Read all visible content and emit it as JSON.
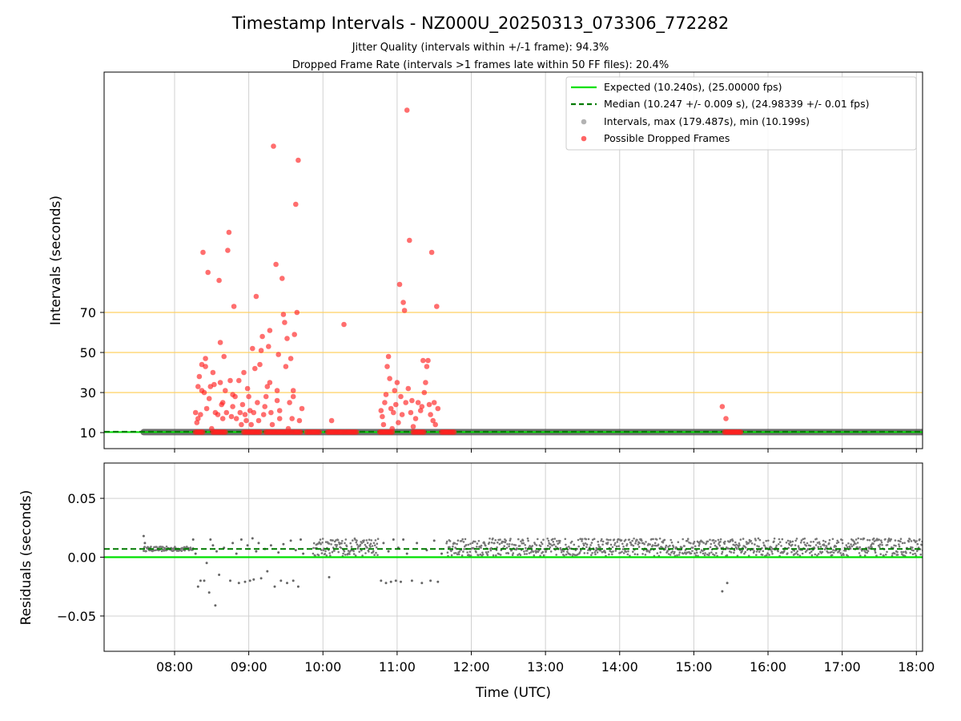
{
  "figure": {
    "title": "Timestamp Intervals - NZ000U_20250313_073306_772282",
    "subtitle_1": "Jitter Quality (intervals within +/-1 frame): 94.3%",
    "subtitle_2": "Dropped Frame Rate (intervals >1 frames late within 50 FF files): 20.4%",
    "xlabel": "Time (UTC)"
  },
  "colors": {
    "expected": "#00e000",
    "median": "#007a00",
    "intervals": "#7f7f7f",
    "dropped": "#ff0000",
    "threshold": "#ffd060",
    "grid": "#d0d0d0"
  },
  "chart_data": [
    {
      "type": "scatter",
      "panel": "top",
      "ylabel": "Intervals (seconds)",
      "xlim": [
        "07:03",
        "18:05"
      ],
      "ylim": [
        2,
        190
      ],
      "x_ticks": [
        "08:00",
        "09:00",
        "10:00",
        "11:00",
        "12:00",
        "13:00",
        "14:00",
        "15:00",
        "16:00",
        "17:00",
        "18:00"
      ],
      "y_ticks": [
        10,
        30,
        50,
        70
      ],
      "threshold_lines": [
        30,
        50,
        70
      ],
      "grid": true,
      "legend_position": "top-right",
      "legend": [
        {
          "key": "expected",
          "label": "Expected (10.240s), (25.00000 fps)",
          "style": "solid-line"
        },
        {
          "key": "median",
          "label": "Median (10.247 +/- 0.009 s), (24.98339 +/- 0.01 fps)",
          "style": "dashed-line"
        },
        {
          "key": "intervals",
          "label": "Intervals, max (179.487s), min (10.199s)",
          "style": "dot"
        },
        {
          "key": "dropped",
          "label": "Possible Dropped Frames",
          "style": "dot"
        }
      ],
      "expected_value": 10.24,
      "median_value": 10.247,
      "interval_band": {
        "x_start": "07:35",
        "x_end": "18:05",
        "value": 10.24
      },
      "dropped_clusters": [
        {
          "x_start": "08:17",
          "x_end": "08:23",
          "y": 10.25
        },
        {
          "x_start": "08:31",
          "x_end": "08:41",
          "y": 10.25
        },
        {
          "x_start": "08:56",
          "x_end": "09:10",
          "y": 10.25
        },
        {
          "x_start": "09:14",
          "x_end": "09:35",
          "y": 10.25
        },
        {
          "x_start": "09:36",
          "x_end": "09:42",
          "y": 10.25
        },
        {
          "x_start": "09:47",
          "x_end": "09:57",
          "y": 10.25
        },
        {
          "x_start": "10:04",
          "x_end": "10:16",
          "y": 10.25
        },
        {
          "x_start": "10:17",
          "x_end": "10:27",
          "y": 10.25
        },
        {
          "x_start": "10:46",
          "x_end": "10:57",
          "y": 10.25
        },
        {
          "x_start": "11:13",
          "x_end": "11:22",
          "y": 10.25
        },
        {
          "x_start": "11:36",
          "x_end": "11:47",
          "y": 10.25
        },
        {
          "x_start": "15:25",
          "x_end": "15:38",
          "y": 10.25
        }
      ],
      "dropped_points": [
        {
          "x": "08:17",
          "y": 20
        },
        {
          "x": "08:18",
          "y": 15
        },
        {
          "x": "08:19",
          "y": 17
        },
        {
          "x": "08:19",
          "y": 33
        },
        {
          "x": "08:20",
          "y": 38
        },
        {
          "x": "08:21",
          "y": 19
        },
        {
          "x": "08:22",
          "y": 44
        },
        {
          "x": "08:22",
          "y": 31
        },
        {
          "x": "08:23",
          "y": 100
        },
        {
          "x": "08:24",
          "y": 30
        },
        {
          "x": "08:25",
          "y": 43
        },
        {
          "x": "08:25",
          "y": 47
        },
        {
          "x": "08:26",
          "y": 22
        },
        {
          "x": "08:27",
          "y": 90
        },
        {
          "x": "08:28",
          "y": 27
        },
        {
          "x": "08:29",
          "y": 33
        },
        {
          "x": "08:30",
          "y": 12
        },
        {
          "x": "08:31",
          "y": 40
        },
        {
          "x": "08:32",
          "y": 34
        },
        {
          "x": "08:33",
          "y": 20
        },
        {
          "x": "08:35",
          "y": 19
        },
        {
          "x": "08:36",
          "y": 86
        },
        {
          "x": "08:37",
          "y": 55
        },
        {
          "x": "08:37",
          "y": 35
        },
        {
          "x": "08:38",
          "y": 24
        },
        {
          "x": "08:39",
          "y": 25
        },
        {
          "x": "08:39",
          "y": 17
        },
        {
          "x": "08:40",
          "y": 48
        },
        {
          "x": "08:41",
          "y": 31
        },
        {
          "x": "08:42",
          "y": 20
        },
        {
          "x": "08:43",
          "y": 101
        },
        {
          "x": "08:44",
          "y": 110
        },
        {
          "x": "08:45",
          "y": 36
        },
        {
          "x": "08:46",
          "y": 18
        },
        {
          "x": "08:47",
          "y": 23
        },
        {
          "x": "08:47",
          "y": 29
        },
        {
          "x": "08:48",
          "y": 73
        },
        {
          "x": "08:49",
          "y": 28
        },
        {
          "x": "08:50",
          "y": 17
        },
        {
          "x": "08:52",
          "y": 36
        },
        {
          "x": "08:53",
          "y": 20
        },
        {
          "x": "08:54",
          "y": 14
        },
        {
          "x": "08:55",
          "y": 24
        },
        {
          "x": "08:56",
          "y": 40
        },
        {
          "x": "08:57",
          "y": 19
        },
        {
          "x": "08:58",
          "y": 16
        },
        {
          "x": "08:59",
          "y": 32
        },
        {
          "x": "09:00",
          "y": 28
        },
        {
          "x": "09:01",
          "y": 21
        },
        {
          "x": "09:02",
          "y": 14
        },
        {
          "x": "09:03",
          "y": 52
        },
        {
          "x": "09:04",
          "y": 20
        },
        {
          "x": "09:05",
          "y": 42
        },
        {
          "x": "09:06",
          "y": 78
        },
        {
          "x": "09:07",
          "y": 25
        },
        {
          "x": "09:08",
          "y": 16
        },
        {
          "x": "09:09",
          "y": 44
        },
        {
          "x": "09:10",
          "y": 51
        },
        {
          "x": "09:11",
          "y": 58
        },
        {
          "x": "09:12",
          "y": 19
        },
        {
          "x": "09:13",
          "y": 23
        },
        {
          "x": "09:14",
          "y": 28
        },
        {
          "x": "09:15",
          "y": 33
        },
        {
          "x": "09:16",
          "y": 53
        },
        {
          "x": "09:17",
          "y": 35
        },
        {
          "x": "09:17",
          "y": 61
        },
        {
          "x": "09:18",
          "y": 20
        },
        {
          "x": "09:19",
          "y": 14
        },
        {
          "x": "09:20",
          "y": 153
        },
        {
          "x": "09:22",
          "y": 94
        },
        {
          "x": "09:23",
          "y": 26
        },
        {
          "x": "09:23",
          "y": 31
        },
        {
          "x": "09:24",
          "y": 49
        },
        {
          "x": "09:25",
          "y": 21
        },
        {
          "x": "09:25",
          "y": 17
        },
        {
          "x": "09:27",
          "y": 87
        },
        {
          "x": "09:28",
          "y": 69
        },
        {
          "x": "09:29",
          "y": 65
        },
        {
          "x": "09:30",
          "y": 43
        },
        {
          "x": "09:31",
          "y": 57
        },
        {
          "x": "09:32",
          "y": 12
        },
        {
          "x": "09:33",
          "y": 25
        },
        {
          "x": "09:34",
          "y": 47
        },
        {
          "x": "09:35",
          "y": 17
        },
        {
          "x": "09:36",
          "y": 31
        },
        {
          "x": "09:36",
          "y": 28
        },
        {
          "x": "09:37",
          "y": 59
        },
        {
          "x": "09:38",
          "y": 124
        },
        {
          "x": "09:39",
          "y": 70
        },
        {
          "x": "09:40",
          "y": 146
        },
        {
          "x": "09:41",
          "y": 16
        },
        {
          "x": "09:43",
          "y": 22
        },
        {
          "x": "10:07",
          "y": 16
        },
        {
          "x": "10:17",
          "y": 64
        },
        {
          "x": "10:47",
          "y": 21
        },
        {
          "x": "10:48",
          "y": 18
        },
        {
          "x": "10:49",
          "y": 14
        },
        {
          "x": "10:50",
          "y": 25
        },
        {
          "x": "10:51",
          "y": 29
        },
        {
          "x": "10:52",
          "y": 43
        },
        {
          "x": "10:53",
          "y": 48
        },
        {
          "x": "10:54",
          "y": 37
        },
        {
          "x": "10:55",
          "y": 22
        },
        {
          "x": "10:56",
          "y": 12
        },
        {
          "x": "10:57",
          "y": 20
        },
        {
          "x": "10:58",
          "y": 31
        },
        {
          "x": "10:59",
          "y": 24
        },
        {
          "x": "11:00",
          "y": 35
        },
        {
          "x": "11:01",
          "y": 15
        },
        {
          "x": "11:02",
          "y": 84
        },
        {
          "x": "11:03",
          "y": 28
        },
        {
          "x": "11:04",
          "y": 19
        },
        {
          "x": "11:05",
          "y": 75
        },
        {
          "x": "11:06",
          "y": 71
        },
        {
          "x": "11:07",
          "y": 25
        },
        {
          "x": "11:08",
          "y": 171
        },
        {
          "x": "11:09",
          "y": 32
        },
        {
          "x": "11:10",
          "y": 106
        },
        {
          "x": "11:11",
          "y": 20
        },
        {
          "x": "11:12",
          "y": 26
        },
        {
          "x": "11:13",
          "y": 13
        },
        {
          "x": "11:15",
          "y": 17
        },
        {
          "x": "11:17",
          "y": 25
        },
        {
          "x": "11:19",
          "y": 21
        },
        {
          "x": "11:20",
          "y": 23
        },
        {
          "x": "11:21",
          "y": 46
        },
        {
          "x": "11:22",
          "y": 30
        },
        {
          "x": "11:23",
          "y": 35
        },
        {
          "x": "11:24",
          "y": 43
        },
        {
          "x": "11:25",
          "y": 46
        },
        {
          "x": "11:26",
          "y": 24
        },
        {
          "x": "11:27",
          "y": 19
        },
        {
          "x": "11:28",
          "y": 100
        },
        {
          "x": "11:29",
          "y": 16
        },
        {
          "x": "11:30",
          "y": 25
        },
        {
          "x": "11:31",
          "y": 14
        },
        {
          "x": "11:32",
          "y": 73
        },
        {
          "x": "11:33",
          "y": 22
        },
        {
          "x": "15:23",
          "y": 23
        },
        {
          "x": "15:26",
          "y": 17
        }
      ]
    },
    {
      "type": "scatter",
      "panel": "bottom",
      "ylabel": "Residuals (seconds)",
      "xlabel": "Time (UTC)",
      "xlim": [
        "07:03",
        "18:05"
      ],
      "ylim": [
        -0.08,
        0.08
      ],
      "x_ticks": [
        "08:00",
        "09:00",
        "10:00",
        "11:00",
        "12:00",
        "13:00",
        "14:00",
        "15:00",
        "16:00",
        "17:00",
        "18:00"
      ],
      "y_ticks": [
        {
          "value": 0.05,
          "label": "0.05"
        },
        {
          "value": 0.0,
          "label": "0.00"
        },
        {
          "value": -0.05,
          "label": "−0.05"
        }
      ],
      "grid": true,
      "expected_value": 0.0,
      "median_value": 0.007,
      "residual_bands": [
        {
          "x_start": "07:35",
          "x_end": "08:15",
          "low": 0.005,
          "high": 0.009
        },
        {
          "x_start": "09:52",
          "x_end": "10:45",
          "low": 0.001,
          "high": 0.016
        },
        {
          "x_start": "11:40",
          "x_end": "18:05",
          "low": 0.001,
          "high": 0.016
        }
      ],
      "residual_points": [
        {
          "x": "07:35",
          "y": 0.018
        },
        {
          "x": "07:36",
          "y": 0.012
        },
        {
          "x": "08:15",
          "y": 0.015
        },
        {
          "x": "08:17",
          "y": 0.003
        },
        {
          "x": "08:19",
          "y": -0.025
        },
        {
          "x": "08:21",
          "y": -0.02
        },
        {
          "x": "08:24",
          "y": -0.02
        },
        {
          "x": "08:26",
          "y": -0.005
        },
        {
          "x": "08:28",
          "y": -0.03
        },
        {
          "x": "08:29",
          "y": 0.015
        },
        {
          "x": "08:31",
          "y": 0.01
        },
        {
          "x": "08:33",
          "y": -0.041
        },
        {
          "x": "08:34",
          "y": 0.005
        },
        {
          "x": "08:36",
          "y": -0.015
        },
        {
          "x": "08:40",
          "y": 0.008
        },
        {
          "x": "08:45",
          "y": -0.02
        },
        {
          "x": "08:47",
          "y": 0.012
        },
        {
          "x": "08:50",
          "y": 0.003
        },
        {
          "x": "08:52",
          "y": -0.022
        },
        {
          "x": "08:54",
          "y": 0.015
        },
        {
          "x": "08:57",
          "y": -0.021
        },
        {
          "x": "08:59",
          "y": 0.01
        },
        {
          "x": "09:01",
          "y": -0.02
        },
        {
          "x": "09:03",
          "y": 0.016
        },
        {
          "x": "09:04",
          "y": -0.019
        },
        {
          "x": "09:06",
          "y": 0.005
        },
        {
          "x": "09:08",
          "y": 0.012
        },
        {
          "x": "09:10",
          "y": -0.018
        },
        {
          "x": "09:13",
          "y": 0.007
        },
        {
          "x": "09:15",
          "y": -0.012
        },
        {
          "x": "09:18",
          "y": 0.01
        },
        {
          "x": "09:21",
          "y": -0.025
        },
        {
          "x": "09:24",
          "y": 0.004
        },
        {
          "x": "09:26",
          "y": -0.02
        },
        {
          "x": "09:28",
          "y": 0.011
        },
        {
          "x": "09:31",
          "y": -0.022
        },
        {
          "x": "09:34",
          "y": 0.014
        },
        {
          "x": "09:36",
          "y": -0.02
        },
        {
          "x": "09:38",
          "y": 0.006
        },
        {
          "x": "09:40",
          "y": -0.025
        },
        {
          "x": "09:42",
          "y": 0.015
        },
        {
          "x": "09:44",
          "y": 0.003
        },
        {
          "x": "10:05",
          "y": -0.017
        },
        {
          "x": "10:47",
          "y": -0.02
        },
        {
          "x": "10:49",
          "y": 0.012
        },
        {
          "x": "10:51",
          "y": -0.022
        },
        {
          "x": "10:53",
          "y": 0.005
        },
        {
          "x": "10:55",
          "y": -0.021
        },
        {
          "x": "10:57",
          "y": 0.015
        },
        {
          "x": "10:59",
          "y": -0.02
        },
        {
          "x": "11:01",
          "y": 0.008
        },
        {
          "x": "11:03",
          "y": -0.021
        },
        {
          "x": "11:05",
          "y": 0.015
        },
        {
          "x": "11:08",
          "y": 0.003
        },
        {
          "x": "11:12",
          "y": -0.02
        },
        {
          "x": "11:16",
          "y": 0.012
        },
        {
          "x": "11:20",
          "y": -0.022
        },
        {
          "x": "11:24",
          "y": 0.006
        },
        {
          "x": "11:27",
          "y": -0.02
        },
        {
          "x": "11:30",
          "y": 0.014
        },
        {
          "x": "11:33",
          "y": -0.021
        },
        {
          "x": "11:36",
          "y": 0.003
        },
        {
          "x": "15:23",
          "y": -0.029
        },
        {
          "x": "15:27",
          "y": -0.022
        }
      ]
    }
  ]
}
